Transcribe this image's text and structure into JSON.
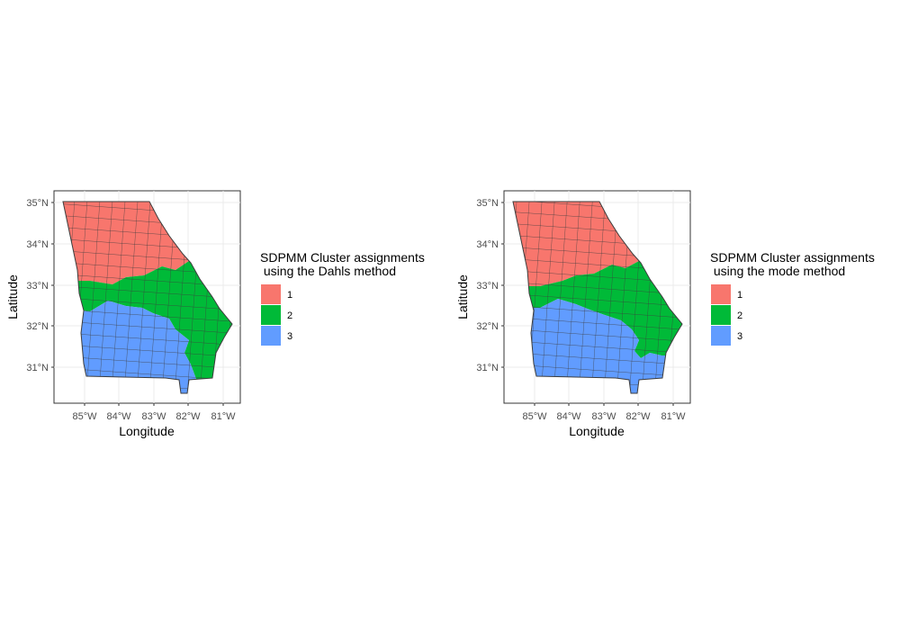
{
  "panels": [
    {
      "id": "dahls",
      "legend": {
        "title_line1": "SDPMM Cluster assignments",
        "title_line2": " using the Dahls method",
        "entries": [
          {
            "label": "1",
            "color": "#F8766D"
          },
          {
            "label": "2",
            "color": "#00BA38"
          },
          {
            "label": "3",
            "color": "#619CFF"
          }
        ]
      },
      "xlabel": "Longitude",
      "ylabel": "Latitude",
      "x_ticks": [
        "85°W",
        "84°W",
        "83°W",
        "82°W",
        "81°W"
      ],
      "y_ticks": [
        "35°N",
        "34°N",
        "33°N",
        "32°N",
        "31°N"
      ]
    },
    {
      "id": "mode",
      "legend": {
        "title_line1": "SDPMM Cluster assignments",
        "title_line2": " using the mode method",
        "entries": [
          {
            "label": "1",
            "color": "#F8766D"
          },
          {
            "label": "2",
            "color": "#00BA38"
          },
          {
            "label": "3",
            "color": "#619CFF"
          }
        ]
      },
      "xlabel": "Longitude",
      "ylabel": "Latitude",
      "x_ticks": [
        "85°W",
        "84°W",
        "83°W",
        "82°W",
        "81°W"
      ],
      "y_ticks": [
        "35°N",
        "34°N",
        "33°N",
        "32°N",
        "31°N"
      ]
    }
  ],
  "colors": {
    "cluster_1": "#F8766D",
    "cluster_2": "#00BA38",
    "cluster_3": "#619CFF",
    "county_border": "#3d3d3d",
    "grid": "#ebebeb",
    "panel_border": "#333333"
  }
}
